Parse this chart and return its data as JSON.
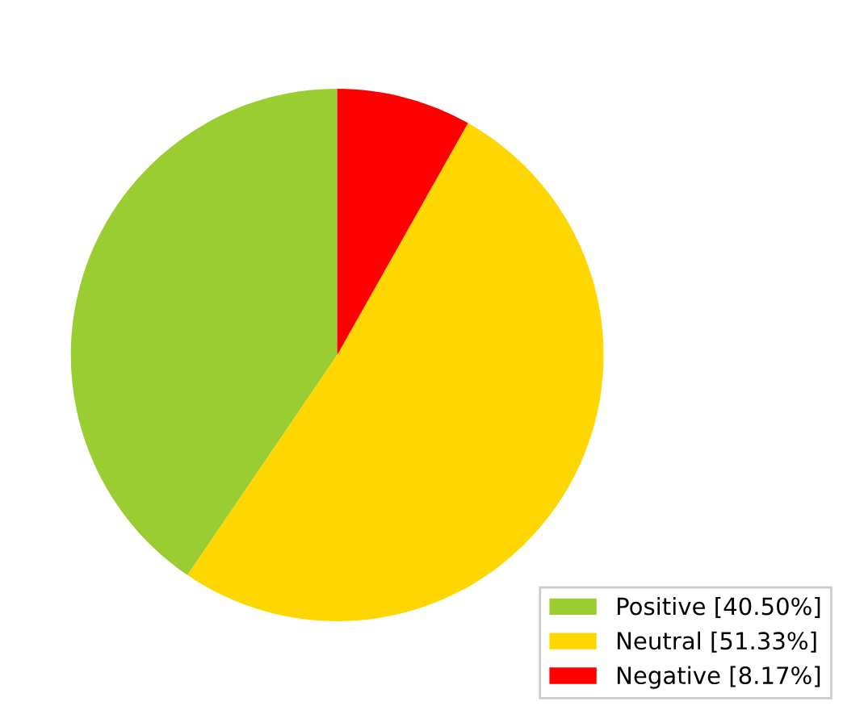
{
  "chart_data": {
    "type": "pie",
    "categories": [
      "Positive [40.50%]",
      "Neutral [51.33%]",
      "Negative [8.17%]"
    ],
    "values": [
      40.5,
      51.33,
      8.17
    ],
    "colors": [
      "#9acd32",
      "#ffd700",
      "#ff0000"
    ],
    "legend": "bottom right"
  }
}
